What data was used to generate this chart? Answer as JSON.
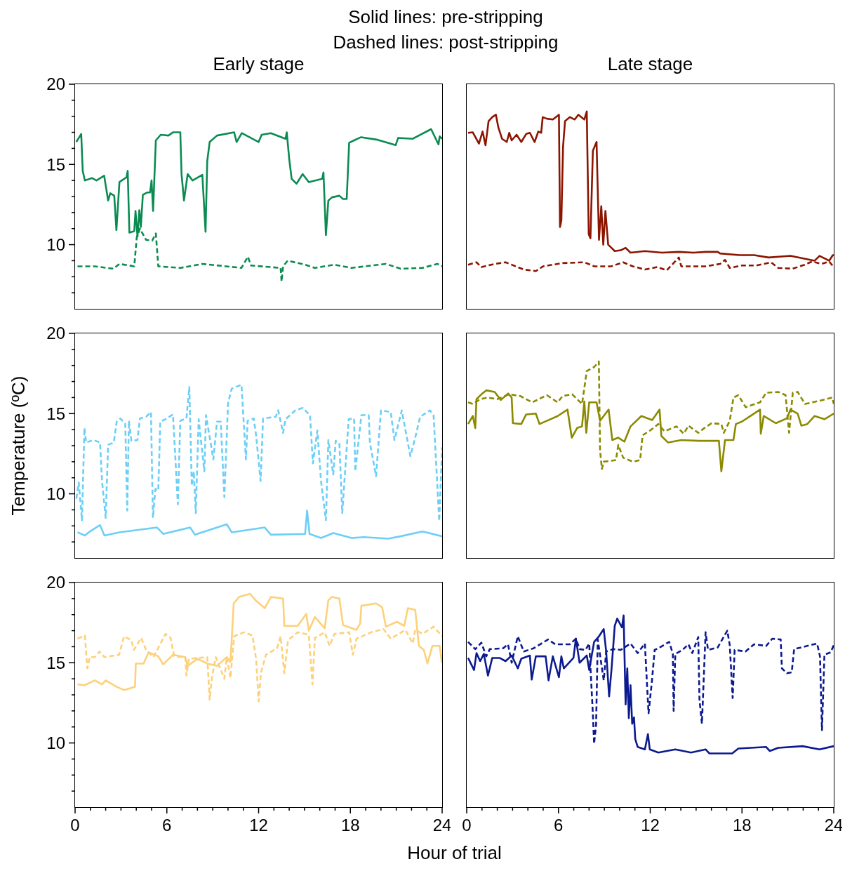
{
  "chart_data": [
    {
      "type": "line",
      "title": "Early stage",
      "annotations": [
        "Solid lines: pre-stripping",
        "Dashed lines: post-stripping"
      ],
      "xlim": [
        0,
        24
      ],
      "ylim": [
        6,
        20
      ],
      "tick_labels": "y",
      "yticks": [
        {
          "value": 7,
          "label": null
        },
        {
          "value": 8,
          "label": null
        },
        {
          "value": 9,
          "label": null
        },
        10,
        {
          "value": 11,
          "label": null
        },
        {
          "value": 12,
          "label": null
        },
        {
          "value": 13,
          "label": null
        },
        {
          "value": 14,
          "label": null
        },
        15,
        {
          "value": 16,
          "label": null
        },
        {
          "value": 17,
          "label": null
        },
        {
          "value": 18,
          "label": null
        },
        {
          "value": 19,
          "label": null
        },
        20
      ],
      "series": [
        {
          "color": "#0b8b52",
          "line_style": "solid",
          "x": [
            0.08,
            0.4,
            0.5,
            0.64,
            1.1,
            1.4,
            1.9,
            2.16,
            2.3,
            2.56,
            2.7,
            2.9,
            3.36,
            3.44,
            3.55,
            3.87,
            3.95,
            4.08,
            4.2,
            4.3,
            4.43,
            4.7,
            4.9,
            5.0,
            5.1,
            5.28,
            5.6,
            6.1,
            6.4,
            6.88,
            6.96,
            7.12,
            7.36,
            7.68,
            8.32,
            8.53,
            8.64,
            8.8,
            9.28,
            10.4,
            10.56,
            10.9,
            12.0,
            12.2,
            12.8,
            13.76,
            13.84,
            14.0,
            14.16,
            14.48,
            14.88,
            15.28,
            16.16,
            16.24,
            16.4,
            16.56,
            16.8,
            17.28,
            17.52,
            17.76,
            17.92,
            18.24,
            18.7,
            19.7,
            20.96,
            21.12,
            22.08,
            23.28,
            23.76,
            23.84,
            24.0
          ],
          "values": [
            16.4,
            16.9,
            14.6,
            14.0,
            14.15,
            14.0,
            14.3,
            12.75,
            13.2,
            13.05,
            10.9,
            13.9,
            14.2,
            14.6,
            10.75,
            10.85,
            12.1,
            10.5,
            12.15,
            11.1,
            13.1,
            13.25,
            13.25,
            14.0,
            12.1,
            16.5,
            16.85,
            16.8,
            17.0,
            17.0,
            14.4,
            12.75,
            14.4,
            14.0,
            14.35,
            10.8,
            15.2,
            16.4,
            16.8,
            17.0,
            16.4,
            16.95,
            16.4,
            16.85,
            16.95,
            16.6,
            17.0,
            15.35,
            14.1,
            13.8,
            14.4,
            13.9,
            14.1,
            14.5,
            10.6,
            12.75,
            12.95,
            13.05,
            12.85,
            12.85,
            16.35,
            16.5,
            16.7,
            16.55,
            16.2,
            16.65,
            16.6,
            17.2,
            16.25,
            16.75,
            16.6
          ]
        },
        {
          "color": "#0b8b52",
          "line_style": "dashed",
          "x": [
            0.16,
            1.28,
            2.5,
            2.9,
            3.87,
            4.03,
            4.24,
            4.64,
            5.04,
            5.28,
            5.44,
            6.88,
            8.32,
            10.88,
            11.3,
            11.5,
            13.44,
            13.5,
            13.6,
            13.9,
            15.04,
            15.68,
            16.96,
            18.08,
            20.32,
            21.28,
            22.72,
            23.68,
            24.0
          ],
          "values": [
            8.65,
            8.65,
            8.5,
            8.8,
            8.65,
            10.45,
            11.0,
            10.3,
            10.25,
            10.7,
            8.65,
            8.55,
            8.8,
            8.55,
            9.25,
            8.7,
            8.55,
            7.7,
            8.65,
            9.0,
            8.75,
            8.55,
            8.75,
            8.55,
            8.8,
            8.5,
            8.55,
            8.8,
            8.65
          ]
        }
      ]
    },
    {
      "type": "line",
      "title": "Late stage",
      "xlim": [
        0,
        24
      ],
      "ylim": [
        6,
        20
      ],
      "tick_labels": false,
      "series": [
        {
          "color": "#8b1500",
          "line_style": "solid",
          "x": [
            0.09,
            0.4,
            0.8,
            1.04,
            1.23,
            1.43,
            1.67,
            1.91,
            2.07,
            2.31,
            2.62,
            2.78,
            2.94,
            3.26,
            3.57,
            3.89,
            4.13,
            4.44,
            4.68,
            4.87,
            4.97,
            5.24,
            5.63,
            6.03,
            6.1,
            6.19,
            6.3,
            6.43,
            6.75,
            7.06,
            7.3,
            7.69,
            7.85,
            7.98,
            8.09,
            8.25,
            8.49,
            8.65,
            8.8,
            8.93,
            9.07,
            9.25,
            9.36,
            9.68,
            10.07,
            10.39,
            10.71,
            11.65,
            12.77,
            13.87,
            14.83,
            15.62,
            16.41,
            16.57,
            17.84,
            18.79,
            19.74,
            21.17,
            21.96,
            22.75,
            23.07,
            23.7,
            23.94,
            24.0
          ],
          "values": [
            16.97,
            17.0,
            16.3,
            17.05,
            16.2,
            17.7,
            17.95,
            18.1,
            17.3,
            16.6,
            16.4,
            16.97,
            16.5,
            16.85,
            16.4,
            16.9,
            16.97,
            16.4,
            17.05,
            16.97,
            17.95,
            17.85,
            17.8,
            18.1,
            11.1,
            11.5,
            16.1,
            17.7,
            17.95,
            17.8,
            18.1,
            17.8,
            18.3,
            10.65,
            10.4,
            15.85,
            16.4,
            10.3,
            12.4,
            10.0,
            12.1,
            10.0,
            9.9,
            9.6,
            9.65,
            9.8,
            9.5,
            9.6,
            9.5,
            9.55,
            9.5,
            9.55,
            9.55,
            9.45,
            9.35,
            9.35,
            9.2,
            9.3,
            9.15,
            9.0,
            9.3,
            9.0,
            9.35,
            9.35
          ]
        },
        {
          "color": "#8b1500",
          "line_style": "dashed",
          "x": [
            0.09,
            0.64,
            0.96,
            1.83,
            2.54,
            3.73,
            4.52,
            5.0,
            6.27,
            7.69,
            8.33,
            9.44,
            10.23,
            10.86,
            11.65,
            12.45,
            13.08,
            13.87,
            14.03,
            15.62,
            16.57,
            16.89,
            17.2,
            17.99,
            18.94,
            19.9,
            20.37,
            21.32,
            22.1,
            22.59,
            23.2,
            23.7,
            24.0
          ],
          "values": [
            8.75,
            8.9,
            8.6,
            8.8,
            8.9,
            8.45,
            8.35,
            8.65,
            8.85,
            8.9,
            8.65,
            8.65,
            8.9,
            8.65,
            8.45,
            8.6,
            8.4,
            9.2,
            8.65,
            8.65,
            8.8,
            9.05,
            8.55,
            8.7,
            8.7,
            8.9,
            8.55,
            8.5,
            8.75,
            8.95,
            8.8,
            8.95,
            8.6
          ]
        }
      ]
    },
    {
      "type": "line",
      "ylabel": "Temperature (ºC)",
      "xlim": [
        0,
        24
      ],
      "ylim": [
        6,
        20
      ],
      "tick_labels": "y",
      "yticks": [
        {
          "value": 7,
          "label": null
        },
        {
          "value": 8,
          "label": null
        },
        {
          "value": 9,
          "label": null
        },
        10,
        {
          "value": 11,
          "label": null
        },
        {
          "value": 12,
          "label": null
        },
        {
          "value": 13,
          "label": null
        },
        {
          "value": 14,
          "label": null
        },
        15,
        {
          "value": 16,
          "label": null
        },
        {
          "value": 17,
          "label": null
        },
        {
          "value": 18,
          "label": null
        },
        {
          "value": 19,
          "label": null
        },
        20
      ],
      "series": [
        {
          "color": "#6dcff6",
          "line_style": "solid",
          "x": [
            0.16,
            0.64,
            0.96,
            1.63,
            1.92,
            2.88,
            5.36,
            5.76,
            7.52,
            7.84,
            9.92,
            10.24,
            12.4,
            12.8,
            15.04,
            15.17,
            15.33,
            16.08,
            16.88,
            18.08,
            18.88,
            20.48,
            21.28,
            22.72,
            24.0
          ],
          "values": [
            7.6,
            7.4,
            7.65,
            8.05,
            7.4,
            7.6,
            7.9,
            7.5,
            7.9,
            7.45,
            8.1,
            7.6,
            7.9,
            7.45,
            7.5,
            8.95,
            7.5,
            7.25,
            7.55,
            7.25,
            7.3,
            7.2,
            7.35,
            7.65,
            7.35
          ]
        },
        {
          "color": "#6dcff6",
          "line_style": "dashed",
          "x": [
            0.08,
            0.24,
            0.45,
            0.61,
            0.72,
            1.2,
            1.63,
            1.76,
            2.0,
            2.16,
            2.53,
            2.72,
            2.96,
            3.28,
            3.41,
            3.52,
            3.68,
            4.08,
            4.24,
            4.64,
            4.96,
            5.09,
            5.25,
            5.44,
            5.57,
            5.92,
            6.4,
            6.72,
            6.88,
            7.28,
            7.47,
            7.63,
            7.76,
            7.89,
            8.08,
            8.45,
            8.56,
            9.04,
            9.28,
            9.52,
            9.76,
            10.0,
            10.24,
            10.88,
            11.17,
            11.28,
            11.68,
            11.84,
            12.13,
            12.29,
            13.12,
            13.28,
            13.6,
            13.76,
            14.4,
            14.88,
            15.36,
            15.55,
            15.84,
            16.08,
            16.4,
            16.56,
            16.88,
            17.04,
            17.28,
            17.47,
            17.89,
            18.24,
            18.32,
            18.72,
            19.2,
            19.28,
            19.68,
            20.0,
            20.64,
            20.88,
            21.36,
            21.92,
            22.24,
            22.56,
            23.2,
            23.44,
            23.81,
            24.0
          ],
          "values": [
            9.7,
            10.7,
            8.35,
            14.1,
            13.2,
            13.35,
            13.2,
            10.8,
            8.5,
            13.05,
            13.2,
            14.5,
            14.7,
            14.35,
            8.95,
            14.55,
            13.3,
            13.35,
            14.7,
            14.8,
            15.1,
            8.5,
            10.3,
            10.2,
            14.5,
            14.65,
            14.95,
            9.35,
            14.55,
            14.7,
            16.65,
            10.5,
            11.4,
            8.8,
            14.65,
            11.4,
            14.9,
            12.15,
            14.5,
            14.5,
            9.8,
            15.65,
            16.55,
            16.8,
            12.15,
            14.55,
            14.7,
            13.6,
            10.8,
            14.7,
            14.8,
            15.2,
            13.8,
            14.65,
            15.2,
            15.35,
            14.9,
            11.9,
            13.95,
            10.8,
            8.35,
            13.35,
            11.2,
            13.3,
            13.15,
            8.8,
            14.65,
            14.7,
            11.4,
            14.9,
            14.9,
            13.15,
            11.1,
            15.2,
            15.1,
            13.35,
            15.2,
            12.35,
            13.5,
            14.8,
            15.2,
            14.9,
            8.3,
            12.9
          ]
        }
      ]
    },
    {
      "type": "line",
      "xlim": [
        0,
        24
      ],
      "ylim": [
        6,
        20
      ],
      "tick_labels": false,
      "series": [
        {
          "color": "#8b8a00",
          "line_style": "solid",
          "x": [
            0.09,
            0.4,
            0.56,
            0.64,
            0.96,
            1.28,
            1.83,
            2.23,
            2.71,
            2.94,
            3.02,
            3.57,
            3.89,
            4.52,
            4.76,
            5.24,
            5.95,
            6.59,
            6.87,
            7.22,
            7.54,
            7.69,
            7.82,
            8.01,
            8.49,
            8.72,
            9.28,
            9.52,
            9.91,
            10.31,
            10.71,
            11.42,
            12.13,
            12.61,
            12.73,
            13.16,
            14.03,
            15.22,
            16.49,
            16.65,
            16.89,
            17.44,
            17.6,
            17.99,
            18.47,
            19.18,
            19.23,
            19.42,
            20.21,
            20.93,
            21.17,
            21.64,
            21.88,
            22.27,
            22.75,
            23.39,
            24.0
          ],
          "values": [
            14.35,
            14.85,
            14.1,
            15.9,
            16.2,
            16.45,
            16.35,
            15.85,
            16.25,
            16.0,
            14.4,
            14.35,
            14.95,
            15.0,
            14.35,
            14.55,
            14.85,
            15.25,
            13.5,
            14.1,
            14.2,
            15.75,
            13.8,
            15.7,
            15.7,
            14.55,
            15.25,
            13.35,
            13.5,
            13.25,
            14.2,
            14.85,
            14.6,
            15.25,
            13.6,
            13.2,
            13.35,
            13.3,
            13.3,
            11.4,
            13.35,
            13.35,
            14.35,
            14.5,
            14.8,
            15.25,
            13.75,
            14.85,
            14.4,
            14.7,
            15.25,
            15.0,
            14.25,
            14.35,
            14.85,
            14.65,
            15.0
          ]
        },
        {
          "color": "#8b8a00",
          "line_style": "dashed",
          "x": [
            0.09,
            0.4,
            0.88,
            1.36,
            1.99,
            2.78,
            3.49,
            4.29,
            5.24,
            5.95,
            6.27,
            6.9,
            7.54,
            7.85,
            8.33,
            8.64,
            8.72,
            8.84,
            8.96,
            9.76,
            9.91,
            10.23,
            10.86,
            11.34,
            11.5,
            12.0,
            12.53,
            12.93,
            13.72,
            14.19,
            14.5,
            15.14,
            15.54,
            16.01,
            16.65,
            16.81,
            17.2,
            17.44,
            17.76,
            18.24,
            19.18,
            19.58,
            20.37,
            20.85,
            21.08,
            21.32,
            21.64,
            22.12,
            23.07,
            23.9,
            24.0
          ],
          "values": [
            15.7,
            15.6,
            15.9,
            16.0,
            15.9,
            16.2,
            16.1,
            15.7,
            16.15,
            15.7,
            16.1,
            16.2,
            15.6,
            17.65,
            17.9,
            18.25,
            12.7,
            11.55,
            12.0,
            12.1,
            13.05,
            12.25,
            12.0,
            12.1,
            13.65,
            13.95,
            14.35,
            13.9,
            14.2,
            13.75,
            14.25,
            13.8,
            14.1,
            14.4,
            14.35,
            13.8,
            14.55,
            16.0,
            16.15,
            15.4,
            15.7,
            16.3,
            16.35,
            16.15,
            13.8,
            16.3,
            16.35,
            15.6,
            15.8,
            16.0,
            15.6
          ]
        }
      ]
    },
    {
      "type": "line",
      "xlabel": "Hour of trial",
      "xlim": [
        0,
        24
      ],
      "ylim": [
        6,
        20
      ],
      "xticks": [
        0,
        {
          "value": 1,
          "label": null
        },
        {
          "value": 2,
          "label": null
        },
        {
          "value": 3,
          "label": null
        },
        {
          "value": 4,
          "label": null
        },
        {
          "value": 5,
          "label": null
        },
        6,
        {
          "value": 7,
          "label": null
        },
        {
          "value": 8,
          "label": null
        },
        {
          "value": 9,
          "label": null
        },
        {
          "value": 10,
          "label": null
        },
        {
          "value": 11,
          "label": null
        },
        12,
        {
          "value": 13,
          "label": null
        },
        {
          "value": 14,
          "label": null
        },
        {
          "value": 15,
          "label": null
        },
        {
          "value": 16,
          "label": null
        },
        {
          "value": 17,
          "label": null
        },
        18,
        {
          "value": 19,
          "label": null
        },
        {
          "value": 20,
          "label": null
        },
        {
          "value": 21,
          "label": null
        },
        {
          "value": 22,
          "label": null
        },
        {
          "value": 23,
          "label": null
        },
        24
      ],
      "yticks": [
        {
          "value": 7,
          "label": null
        },
        {
          "value": 8,
          "label": null
        },
        {
          "value": 9,
          "label": null
        },
        10,
        {
          "value": 11,
          "label": null
        },
        {
          "value": 12,
          "label": null
        },
        {
          "value": 13,
          "label": null
        },
        {
          "value": 14,
          "label": null
        },
        15,
        {
          "value": 16,
          "label": null
        },
        {
          "value": 17,
          "label": null
        },
        {
          "value": 18,
          "label": null
        },
        {
          "value": 19,
          "label": null
        },
        20
      ],
      "series": [
        {
          "color": "#fdd17a",
          "line_style": "solid",
          "x": [
            0.16,
            0.64,
            1.28,
            1.76,
            2.0,
            2.72,
            3.2,
            3.92,
            3.97,
            4.48,
            4.8,
            5.44,
            5.76,
            6.4,
            7.2,
            7.36,
            8.0,
            8.64,
            9.28,
            9.92,
            10.16,
            10.37,
            10.72,
            11.44,
            11.84,
            12.4,
            12.8,
            13.6,
            13.68,
            14.56,
            15.12,
            15.28,
            15.68,
            16.32,
            16.56,
            16.8,
            17.28,
            17.52,
            18.4,
            18.64,
            18.72,
            19.68,
            20.08,
            20.32,
            21.04,
            21.52,
            21.76,
            22.24,
            22.48,
            22.8,
            23.04,
            23.36,
            23.84,
            23.97,
            24.0
          ],
          "values": [
            13.65,
            13.6,
            13.9,
            13.65,
            13.9,
            13.5,
            13.3,
            13.5,
            14.95,
            14.95,
            15.65,
            15.4,
            14.9,
            15.5,
            15.35,
            14.8,
            15.25,
            14.95,
            14.8,
            15.35,
            15.05,
            18.7,
            19.1,
            19.3,
            18.85,
            18.4,
            19.1,
            19.0,
            17.3,
            17.3,
            18.05,
            17.0,
            17.85,
            17.15,
            18.9,
            19.1,
            19.0,
            17.35,
            17.05,
            17.45,
            18.55,
            18.7,
            18.45,
            17.25,
            17.55,
            17.3,
            18.4,
            18.3,
            16.05,
            15.8,
            14.95,
            16.05,
            16.05,
            15.05,
            15.5
          ]
        },
        {
          "color": "#fdd17a",
          "line_style": "dashed",
          "x": [
            0.16,
            0.64,
            0.8,
            0.96,
            1.28,
            1.6,
            1.92,
            2.88,
            3.2,
            3.68,
            3.84,
            4.32,
            4.64,
            5.12,
            5.92,
            6.24,
            6.48,
            7.2,
            7.28,
            7.44,
            8.64,
            8.8,
            8.96,
            9.2,
            9.76,
            9.92,
            10.16,
            10.4,
            11.04,
            11.6,
            11.84,
            12.0,
            12.16,
            12.48,
            13.2,
            13.44,
            13.68,
            13.92,
            14.56,
            15.28,
            15.52,
            15.68,
            16.32,
            16.64,
            16.96,
            17.92,
            18.16,
            18.4,
            19.36,
            20.16,
            20.64,
            21.6,
            22.08,
            22.24,
            22.72,
            23.44,
            24.0
          ],
          "values": [
            16.5,
            16.7,
            14.65,
            15.35,
            15.35,
            15.7,
            15.35,
            15.5,
            16.65,
            16.4,
            15.8,
            16.55,
            15.8,
            15.35,
            16.8,
            16.55,
            15.4,
            15.35,
            14.2,
            15.25,
            15.35,
            12.7,
            14.15,
            15.35,
            14.0,
            15.35,
            14.05,
            16.65,
            16.9,
            16.7,
            15.2,
            12.6,
            14.4,
            15.5,
            15.9,
            16.65,
            14.35,
            16.4,
            16.9,
            16.75,
            13.65,
            16.55,
            16.9,
            16.05,
            16.8,
            16.9,
            15.5,
            16.5,
            16.9,
            17.1,
            16.5,
            17.05,
            16.2,
            17.05,
            16.8,
            17.25,
            16.65
          ]
        }
      ]
    },
    {
      "type": "line",
      "xlim": [
        0,
        24
      ],
      "ylim": [
        6,
        20
      ],
      "tick_labels": "x",
      "xticks": [
        0,
        {
          "value": 1,
          "label": null
        },
        {
          "value": 2,
          "label": null
        },
        {
          "value": 3,
          "label": null
        },
        {
          "value": 4,
          "label": null
        },
        {
          "value": 5,
          "label": null
        },
        6,
        {
          "value": 7,
          "label": null
        },
        {
          "value": 8,
          "label": null
        },
        {
          "value": 9,
          "label": null
        },
        {
          "value": 10,
          "label": null
        },
        {
          "value": 11,
          "label": null
        },
        12,
        {
          "value": 13,
          "label": null
        },
        {
          "value": 14,
          "label": null
        },
        {
          "value": 15,
          "label": null
        },
        {
          "value": 16,
          "label": null
        },
        {
          "value": 17,
          "label": null
        },
        18,
        {
          "value": 19,
          "label": null
        },
        {
          "value": 20,
          "label": null
        },
        {
          "value": 21,
          "label": null
        },
        {
          "value": 22,
          "label": null
        },
        {
          "value": 23,
          "label": null
        },
        24
      ],
      "series": [
        {
          "color": "#0c1a8f",
          "line_style": "solid",
          "x": [
            0.09,
            0.48,
            0.64,
            0.88,
            1.12,
            1.39,
            1.67,
            2.15,
            2.54,
            2.94,
            3.34,
            3.57,
            4.13,
            4.25,
            4.52,
            5.16,
            5.35,
            5.63,
            6.03,
            6.19,
            6.35,
            6.98,
            7.14,
            7.38,
            7.85,
            8.01,
            8.33,
            8.65,
            8.96,
            9.12,
            9.31,
            9.47,
            9.68,
            9.84,
            10.15,
            10.26,
            10.39,
            10.5,
            10.6,
            10.71,
            10.82,
            10.94,
            11.02,
            11.18,
            11.65,
            11.85,
            11.97,
            12.53,
            13.64,
            14.67,
            15.62,
            15.86,
            17.36,
            17.76,
            19.58,
            19.82,
            20.37,
            21.96,
            23.07,
            24.0
          ],
          "values": [
            15.3,
            14.55,
            15.6,
            15.1,
            15.55,
            14.2,
            15.3,
            15.3,
            15.1,
            15.45,
            14.65,
            15.25,
            15.45,
            13.95,
            15.4,
            15.4,
            13.9,
            15.4,
            14.1,
            15.4,
            14.65,
            15.3,
            16.5,
            15.0,
            15.45,
            14.55,
            16.3,
            16.65,
            17.1,
            15.7,
            12.9,
            14.6,
            17.3,
            17.75,
            17.2,
            17.95,
            12.4,
            14.65,
            11.55,
            13.6,
            11.2,
            11.6,
            10.25,
            9.75,
            9.6,
            10.55,
            9.6,
            9.4,
            9.6,
            9.4,
            9.6,
            9.35,
            9.35,
            9.65,
            9.75,
            9.5,
            9.7,
            9.8,
            9.6,
            9.8
          ]
        },
        {
          "color": "#0c1a8f",
          "line_style": "dashed",
          "x": [
            0.09,
            0.56,
            0.96,
            1.28,
            1.51,
            2.38,
            2.7,
            2.94,
            3.34,
            3.73,
            4.37,
            5.32,
            5.79,
            6.27,
            6.74,
            7.14,
            7.38,
            7.77,
            8.01,
            8.25,
            8.33,
            8.46,
            8.57,
            8.96,
            9.12,
            9.6,
            10.07,
            10.71,
            11.18,
            11.65,
            11.89,
            12.1,
            12.29,
            12.61,
            13.24,
            13.48,
            13.53,
            13.64,
            14.11,
            14.5,
            14.75,
            15.14,
            15.22,
            15.38,
            15.62,
            15.78,
            16.41,
            17.04,
            17.2,
            17.39,
            17.52,
            18.23,
            18.79,
            19.58,
            19.98,
            20.53,
            20.61,
            20.93,
            21.25,
            21.41,
            22.27,
            22.91,
            23.1,
            23.23,
            23.39,
            23.8,
            24.0
          ],
          "values": [
            16.3,
            15.85,
            16.25,
            15.4,
            15.85,
            15.9,
            16.15,
            15.0,
            16.65,
            15.7,
            15.9,
            16.45,
            16.15,
            16.15,
            16.15,
            16.5,
            15.85,
            15.8,
            16.2,
            11.8,
            9.95,
            11.15,
            16.45,
            13.9,
            15.7,
            15.85,
            15.8,
            16.2,
            15.6,
            16.2,
            11.85,
            13.75,
            15.8,
            15.95,
            16.3,
            15.55,
            12.0,
            15.55,
            15.8,
            16.15,
            15.6,
            16.6,
            12.7,
            11.2,
            16.9,
            15.8,
            15.95,
            17.0,
            16.1,
            12.8,
            15.8,
            15.7,
            16.15,
            16.05,
            16.5,
            16.45,
            14.65,
            14.35,
            14.4,
            15.85,
            16.05,
            16.2,
            15.4,
            10.8,
            15.5,
            15.65,
            16.1
          ]
        }
      ]
    }
  ]
}
